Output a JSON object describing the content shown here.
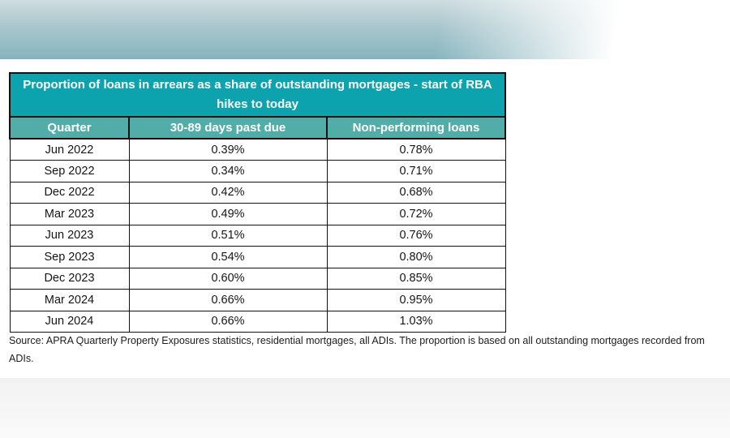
{
  "table": {
    "title": "Proportion of loans in arrears as a share of outstanding mortgages - start of RBA hikes to today",
    "columns": [
      "Quarter",
      "30-89 days past due",
      "Non-performing loans"
    ],
    "rows": [
      {
        "quarter": "Jun 2022",
        "past_due": "0.39%",
        "non_performing": "0.78%"
      },
      {
        "quarter": "Sep 2022",
        "past_due": "0.34%",
        "non_performing": "0.71%"
      },
      {
        "quarter": "Dec 2022",
        "past_due": "0.42%",
        "non_performing": "0.68%"
      },
      {
        "quarter": "Mar 2023",
        "past_due": "0.49%",
        "non_performing": "0.72%"
      },
      {
        "quarter": "Jun 2023",
        "past_due": "0.51%",
        "non_performing": "0.76%"
      },
      {
        "quarter": "Sep 2023",
        "past_due": "0.54%",
        "non_performing": "0.80%"
      },
      {
        "quarter": "Dec 2023",
        "past_due": "0.60%",
        "non_performing": "0.85%"
      },
      {
        "quarter": "Mar 2024",
        "past_due": "0.66%",
        "non_performing": "0.95%"
      },
      {
        "quarter": "Jun 2024",
        "past_due": "0.66%",
        "non_performing": "1.03%"
      }
    ],
    "colors": {
      "title_bg": "#0da3ae",
      "header_bg": "#52ada9",
      "border": "#111111"
    }
  },
  "source_note": "Source: APRA Quarterly Property Exposures statistics, residential mortgages, all ADIs. The proportion is based on all outstanding mortgages recorded from ADIs.",
  "banner": {
    "top_gradient_colors": [
      "#cedcdf",
      "#85b4bd"
    ],
    "bottom_band_color": "#f5f5f5"
  },
  "chart_data": {
    "type": "table",
    "title": "Proportion of loans in arrears as a share of outstanding mortgages - start of RBA hikes to today",
    "categories": [
      "Jun 2022",
      "Sep 2022",
      "Dec 2022",
      "Mar 2023",
      "Jun 2023",
      "Sep 2023",
      "Dec 2023",
      "Mar 2024",
      "Jun 2024"
    ],
    "series": [
      {
        "name": "30-89 days past due (%)",
        "values": [
          0.39,
          0.34,
          0.42,
          0.49,
          0.51,
          0.54,
          0.6,
          0.66,
          0.66
        ]
      },
      {
        "name": "Non-performing loans (%)",
        "values": [
          0.78,
          0.71,
          0.68,
          0.72,
          0.76,
          0.8,
          0.85,
          0.95,
          1.03
        ]
      }
    ],
    "source": "APRA Quarterly Property Exposures statistics, residential mortgages, all ADIs. The proportion is based on all outstanding mortgages recorded from ADIs."
  }
}
